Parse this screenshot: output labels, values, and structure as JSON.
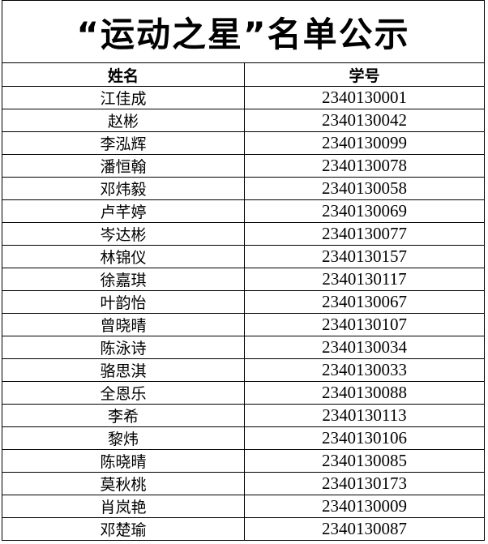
{
  "title": "“运动之星”名单公示",
  "headers": {
    "name": "姓名",
    "id": "学号"
  },
  "rows": [
    {
      "name": "江佳成",
      "id": "2340130001"
    },
    {
      "name": "赵彬",
      "id": "2340130042"
    },
    {
      "name": "李泓辉",
      "id": "2340130099"
    },
    {
      "name": "潘恒翰",
      "id": "2340130078"
    },
    {
      "name": "邓炜毅",
      "id": "2340130058"
    },
    {
      "name": "卢芊婷",
      "id": "2340130069"
    },
    {
      "name": "岑达彬",
      "id": "2340130077"
    },
    {
      "name": "林锦仪",
      "id": "2340130157"
    },
    {
      "name": "徐嘉琪",
      "id": "2340130117"
    },
    {
      "name": "叶韵怡",
      "id": "2340130067"
    },
    {
      "name": "曾晓晴",
      "id": "2340130107"
    },
    {
      "name": "陈泳诗",
      "id": "2340130034"
    },
    {
      "name": "骆思淇",
      "id": "2340130033"
    },
    {
      "name": "全恩乐",
      "id": "2340130088"
    },
    {
      "name": "李希",
      "id": "2340130113"
    },
    {
      "name": "黎炜",
      "id": "2340130106"
    },
    {
      "name": "陈晓晴",
      "id": "2340130085"
    },
    {
      "name": "莫秋桃",
      "id": "2340130173"
    },
    {
      "name": "肖岚艳",
      "id": "2340130009"
    },
    {
      "name": "邓楚瑜",
      "id": "2340130087"
    }
  ]
}
